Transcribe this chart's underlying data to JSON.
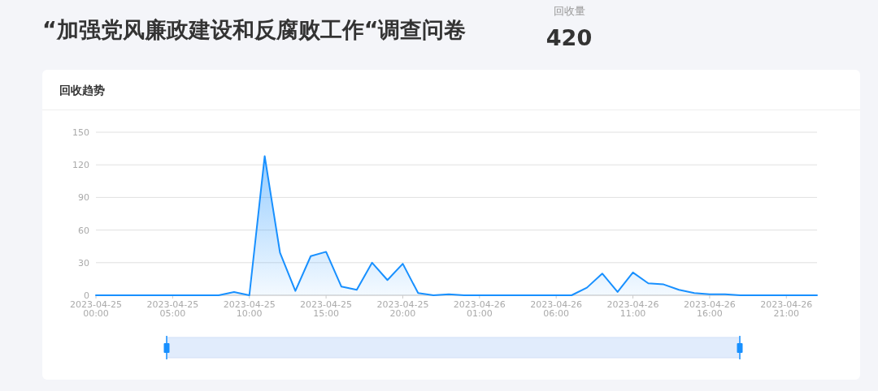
{
  "chart_data": {
    "type": "area",
    "title": "“加强党风廉政建设和反腐败工作“调查问卷",
    "subtitle": "回收趋势",
    "annotations": [
      "回收量",
      "420"
    ],
    "x": [
      "2023-04-25T00:00",
      "2023-04-25T01:00",
      "2023-04-25T02:00",
      "2023-04-25T03:00",
      "2023-04-25T04:00",
      "2023-04-25T05:00",
      "2023-04-25T06:00",
      "2023-04-25T07:00",
      "2023-04-25T08:00",
      "2023-04-25T09:00",
      "2023-04-25T10:00",
      "2023-04-25T11:00",
      "2023-04-25T12:00",
      "2023-04-25T13:00",
      "2023-04-25T14:00",
      "2023-04-25T15:00",
      "2023-04-25T16:00",
      "2023-04-25T17:00",
      "2023-04-25T18:00",
      "2023-04-25T19:00",
      "2023-04-25T20:00",
      "2023-04-25T21:00",
      "2023-04-25T22:00",
      "2023-04-25T23:00",
      "2023-04-26T00:00",
      "2023-04-26T01:00",
      "2023-04-26T02:00",
      "2023-04-26T03:00",
      "2023-04-26T04:00",
      "2023-04-26T05:00",
      "2023-04-26T06:00",
      "2023-04-26T07:00",
      "2023-04-26T08:00",
      "2023-04-26T09:00",
      "2023-04-26T10:00",
      "2023-04-26T11:00",
      "2023-04-26T12:00",
      "2023-04-26T13:00",
      "2023-04-26T14:00",
      "2023-04-26T15:00",
      "2023-04-26T16:00",
      "2023-04-26T17:00",
      "2023-04-26T18:00",
      "2023-04-26T19:00",
      "2023-04-26T20:00",
      "2023-04-26T21:00",
      "2023-04-26T22:00",
      "2023-04-26T23:00"
    ],
    "series": [
      {
        "color": "#1890ff",
        "values": [
          0,
          0,
          0,
          0,
          0,
          0,
          0,
          0,
          0,
          3,
          0,
          128,
          39,
          4,
          36,
          40,
          8,
          5,
          30,
          14,
          29,
          2,
          0,
          1,
          0,
          0,
          0,
          0,
          0,
          0,
          0,
          0,
          7,
          20,
          3,
          21,
          11,
          10,
          5,
          2,
          1,
          1,
          0,
          0,
          0,
          0,
          0,
          0
        ]
      }
    ],
    "xlim": [
      "2023-04-25T00:00",
      "2023-04-26T23:00"
    ],
    "xticks": [
      {
        "value": "2023-04-25T00:00",
        "label": "2023-04-25 00:00"
      },
      {
        "value": "2023-04-25T05:00",
        "label": "2023-04-25 05:00"
      },
      {
        "value": "2023-04-25T10:00",
        "label": "2023-04-25 10:00"
      },
      {
        "value": "2023-04-25T15:00",
        "label": "2023-04-25 15:00"
      },
      {
        "value": "2023-04-25T20:00",
        "label": "2023-04-25 20:00"
      },
      {
        "value": "2023-04-26T01:00",
        "label": "2023-04-26 01:00"
      },
      {
        "value": "2023-04-26T06:00",
        "label": "2023-04-26 06:00"
      },
      {
        "value": "2023-04-26T11:00",
        "label": "2023-04-26 11:00"
      },
      {
        "value": "2023-04-26T16:00",
        "label": "2023-04-26 16:00"
      },
      {
        "value": "2023-04-26T21:00",
        "label": "2023-04-26 21:00"
      }
    ],
    "ylim": [
      0,
      150
    ],
    "yticks": [
      0,
      30,
      60,
      90,
      120,
      150
    ],
    "grid": "y",
    "marker": "none",
    "line_style": "solid"
  }
}
